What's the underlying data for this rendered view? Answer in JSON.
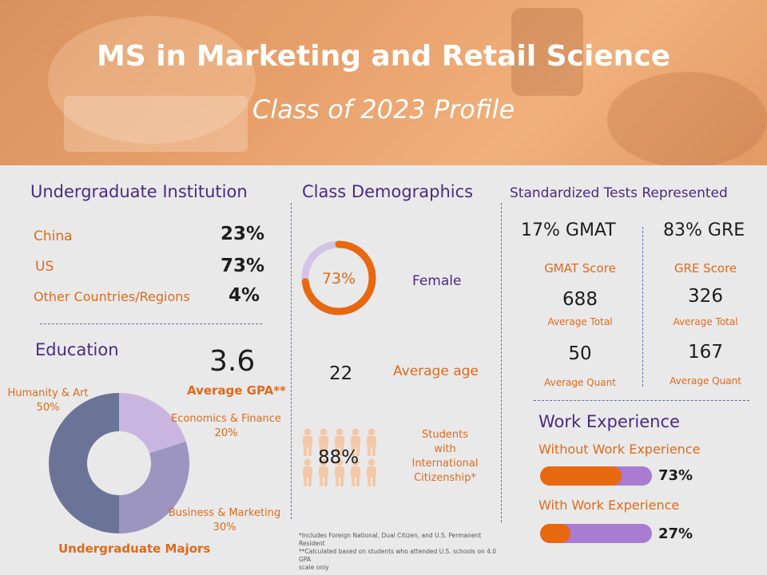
{
  "header": {
    "title": "MS in Marketing and Retail Science",
    "subtitle": "Class of 2023 Profile"
  },
  "undergrad_institution": {
    "heading": "Undergraduate Institution",
    "rows": [
      {
        "label": "China",
        "value": "23%"
      },
      {
        "label": "US",
        "value": "73%"
      },
      {
        "label": "Other Countries/Regions",
        "value": "4%"
      }
    ]
  },
  "education": {
    "heading": "Education",
    "gpa_value": "3.6",
    "gpa_label": "Average GPA**",
    "chart_caption": "Undergraduate Majors"
  },
  "chart_data": {
    "type": "pie",
    "categories": [
      "Humanity & Art",
      "Economics & Finance",
      "Business & Marketing"
    ],
    "values": [
      50,
      20,
      30
    ],
    "value_labels": [
      "50%",
      "20%",
      "30%"
    ],
    "colors": [
      "#6b7397",
      "#c8b6e0",
      "#9b95c0"
    ],
    "title": "Undergraduate Majors"
  },
  "demographics": {
    "heading": "Class Demographics",
    "female_pct_label": "73%",
    "female_fraction": 0.73,
    "female_label": "Female",
    "age_value": "22",
    "age_label": "Average age",
    "intl_pct": "88%",
    "intl_label_1": "Students",
    "intl_label_2": "with",
    "intl_label_3": "International",
    "intl_label_4": "Citizenship*",
    "footnote_1": "*Includes Foreign National, Dual Citizen, and U.S. Permanent Resident",
    "footnote_2": "**Calculated based on students who attended U.S. schools on 4.0 GPA",
    "footnote_3": "scale only"
  },
  "tests": {
    "heading": "Standardized Tests Represented",
    "gmat_share": "17% GMAT",
    "gre_share": "83% GRE",
    "gmat": {
      "score_label": "GMAT Score",
      "total": "688",
      "total_label": "Average Total",
      "quant": "50",
      "quant_label": "Average Quant"
    },
    "gre": {
      "score_label": "GRE Score",
      "total": "326",
      "total_label": "Average Total",
      "quant": "167",
      "quant_label": "Average Quant"
    }
  },
  "work": {
    "heading": "Work Experience",
    "items": [
      {
        "label": "Without Work Experience",
        "value": "73%",
        "fraction": 0.73
      },
      {
        "label": "With Work Experience",
        "value": "27%",
        "fraction": 0.27
      }
    ]
  },
  "colors": {
    "accent_orange": "#e26a1a",
    "accent_purple": "#4a2a86",
    "bar_purple": "#a97bd1"
  }
}
